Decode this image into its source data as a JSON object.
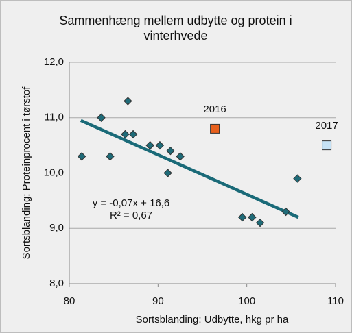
{
  "chart_data": {
    "type": "scatter",
    "title": "Sammenhæng mellem udbytte og protein i vinterhvede",
    "x_label": "Sortsblanding: Udbytte, hkg pr ha",
    "y_label": "Sortsblanding: Proteinprocent i tørstof",
    "xlim": [
      80,
      110
    ],
    "xticks": [
      80,
      90,
      100,
      110
    ],
    "ylim": [
      8,
      12
    ],
    "yticks": [
      {
        "value": 8,
        "label": "8,0"
      },
      {
        "value": 9,
        "label": "9,0"
      },
      {
        "value": 10,
        "label": "10,0"
      },
      {
        "value": 11,
        "label": "11,0"
      },
      {
        "value": 12,
        "label": "12,0"
      }
    ],
    "grid": true,
    "series": [
      {
        "color": "#1f6b78",
        "marker": "diamond",
        "x": [
          81.4,
          83.6,
          84.6,
          86.6,
          86.3,
          87.2,
          89.1,
          90.2,
          91.4,
          91.1,
          92.5,
          99.5,
          100.6,
          101.5,
          104.4,
          105.7
        ],
        "values": [
          10.3,
          11.0,
          10.3,
          11.3,
          10.7,
          10.7,
          10.5,
          10.5,
          10.4,
          10.0,
          10.3,
          9.2,
          9.2,
          9.1,
          9.3,
          9.9
        ]
      },
      {
        "name": "2016",
        "color": "#e8601c",
        "marker": "square",
        "x": [
          96.4
        ],
        "values": [
          10.8
        ]
      },
      {
        "name": "2017",
        "color": "#c6e2f5",
        "marker": "square",
        "x": [
          109.0
        ],
        "values": [
          10.5
        ]
      }
    ],
    "trendline": {
      "color": "#1a6a78",
      "x": [
        81.3,
        105.8
      ],
      "values": [
        10.95,
        9.2
      ]
    },
    "annotations": [
      "y = -0,07x + 16,6",
      "R² = 0,67"
    ]
  }
}
